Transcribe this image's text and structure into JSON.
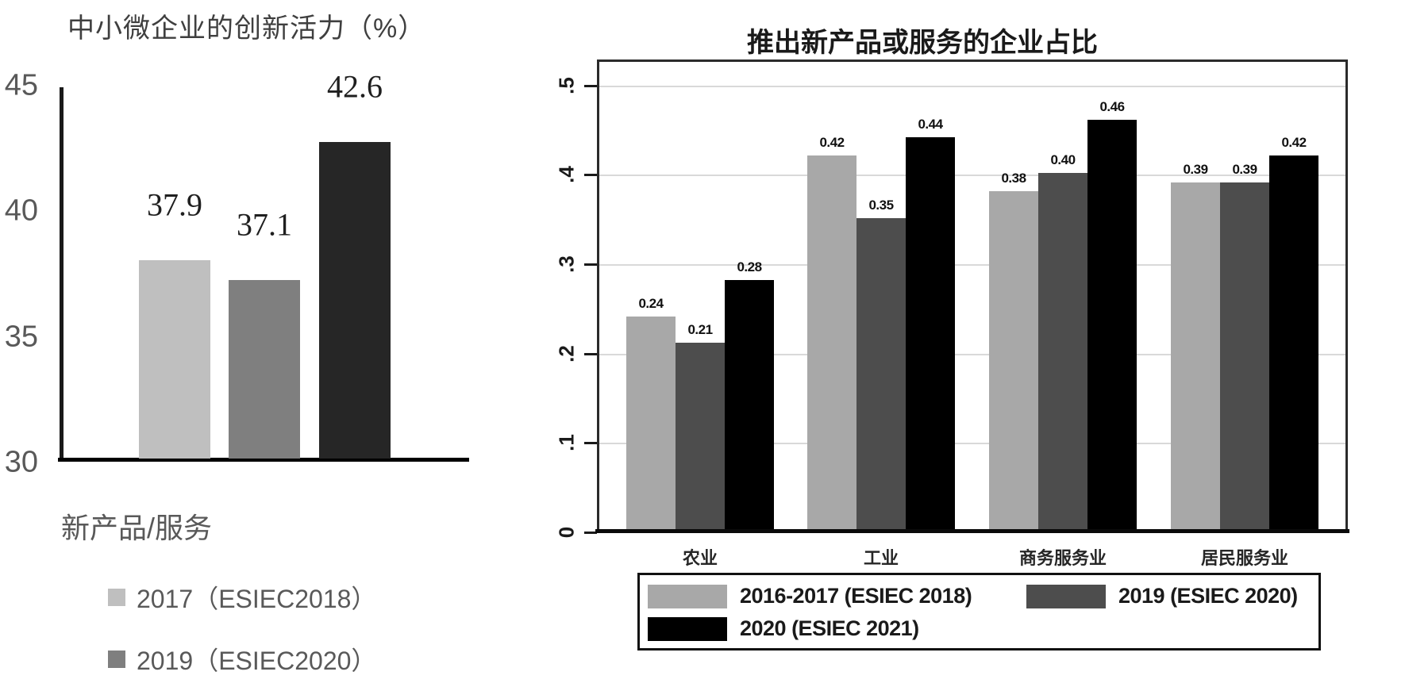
{
  "chart_data": [
    {
      "type": "bar",
      "title": "中小微企业的创新活力（%）",
      "xlabel": "新产品/服务",
      "ylim": [
        30,
        45
      ],
      "yticks": [
        45,
        40,
        35,
        30
      ],
      "grid": false,
      "categories": [
        "新产品/服务"
      ],
      "bars": [
        {
          "label": "37.9",
          "value": 37.9,
          "color": "#bfbfbf"
        },
        {
          "label": "37.1",
          "value": 37.1,
          "color": "#7f7f7f"
        },
        {
          "label": "42.6",
          "value": 42.6,
          "color": "#262626"
        }
      ],
      "legend": [
        {
          "label": "2017（ESIEC2018）",
          "color": "#bfbfbf"
        },
        {
          "label": "2019（ESIEC2020）",
          "color": "#7f7f7f"
        }
      ],
      "text_colors": {
        "title": "#3f3f3f",
        "axis": "#595959",
        "value_labels": "#1f1f1f"
      }
    },
    {
      "type": "bar",
      "title": "推出新产品或服务的企业占比",
      "ylim": [
        0,
        0.53
      ],
      "yticks": [
        "0",
        ".1",
        ".2",
        ".3",
        ".4",
        ".5"
      ],
      "grid": true,
      "grid_color": "#d9d9d9",
      "legend_position": "bottom",
      "categories": [
        "农业",
        "工业",
        "商务服务业",
        "居民服务业"
      ],
      "series": [
        {
          "name": "2016-2017 (ESIEC 2018)",
          "color": "#a8a8a8",
          "values": [
            0.24,
            0.42,
            0.38,
            0.39
          ],
          "labels": [
            "0.24",
            "0.42",
            "0.38",
            "0.39"
          ]
        },
        {
          "name": "2019 (ESIEC 2020)",
          "color": "#4d4d4d",
          "values": [
            0.21,
            0.35,
            0.4,
            0.39
          ],
          "labels": [
            "0.21",
            "0.35",
            "0.40",
            "0.39"
          ]
        },
        {
          "name": "2020 (ESIEC 2021)",
          "color": "#000000",
          "values": [
            0.28,
            0.44,
            0.46,
            0.42
          ],
          "labels": [
            "0.28",
            "0.44",
            "0.46",
            "0.42"
          ]
        }
      ]
    }
  ]
}
